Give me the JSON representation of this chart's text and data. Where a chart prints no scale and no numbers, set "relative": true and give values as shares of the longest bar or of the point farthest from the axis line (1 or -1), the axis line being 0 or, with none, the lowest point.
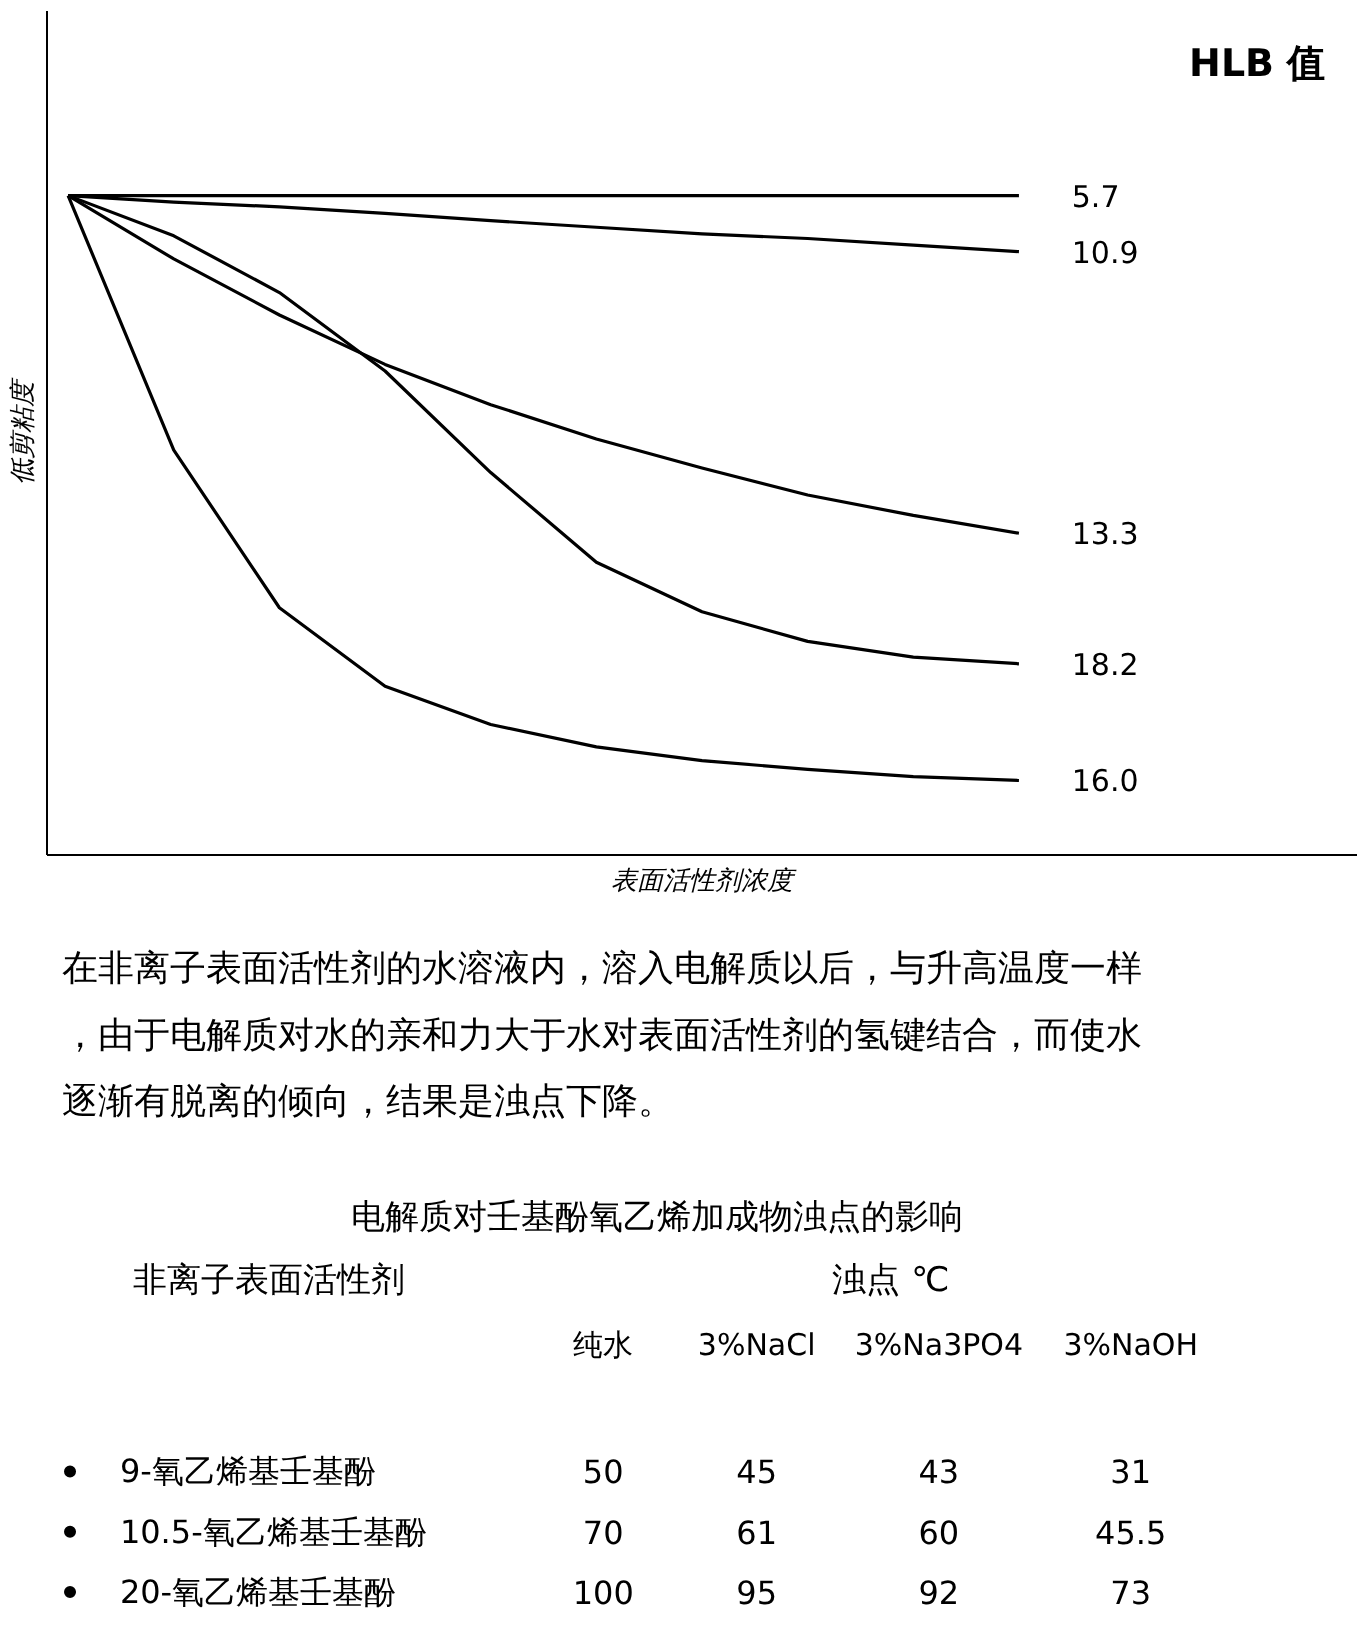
{
  "chart_data": [
    {
      "type": "line",
      "relative": true,
      "ylabel": "低剪粘度",
      "xlabel": "表面活性剂浓度",
      "legend_title": "HLB 值",
      "categories": [
        null,
        null,
        null,
        null,
        null,
        null,
        null,
        null,
        null,
        null
      ],
      "series": [
        {
          "name": "5.7",
          "color": "#000000",
          "values": [
            1,
            1,
            1,
            1,
            1,
            1,
            1,
            1,
            1,
            1
          ]
        },
        {
          "name": "10.9",
          "color": "#000000",
          "values": [
            1,
            0.99,
            0.983,
            0.973,
            0.962,
            0.952,
            0.942,
            0.935,
            0.925,
            0.915
          ]
        },
        {
          "name": "13.3",
          "color": "#000000",
          "values": [
            1,
            0.904,
            0.819,
            0.744,
            0.683,
            0.631,
            0.587,
            0.546,
            0.515,
            0.488
          ]
        },
        {
          "name": "18.2",
          "color": "#000000",
          "values": [
            1,
            0.939,
            0.853,
            0.734,
            0.58,
            0.444,
            0.369,
            0.324,
            0.3,
            0.29
          ]
        },
        {
          "name": "16.0",
          "color": "#000000",
          "values": [
            1,
            0.614,
            0.375,
            0.256,
            0.198,
            0.164,
            0.143,
            0.13,
            0.119,
            0.113
          ]
        }
      ]
    },
    {
      "type": "other",
      "annotations": [
        "在非离子表面活性剂的水溶液内，溶入电解质以后，与升高温度一样，由于电解质对水的亲和力大于水对表面活性剂的氢键结合，而使水逐渐有脱离的倾向，结果是浊点下降。"
      ],
      "title": "电解质对壬基酚氧乙烯加成物浊点的影响",
      "ylabel": "非离子表面活性剂",
      "xlabel": "浊点 ℃",
      "data_labels": true,
      "categories": [
        "纯水",
        "3%NaCl",
        "3%Na3PO4",
        "3%NaOH"
      ],
      "series": [
        {
          "name": "9-氧乙烯基壬基酚",
          "values": [
            50,
            45,
            43,
            31
          ]
        },
        {
          "name": "10.5-氧乙烯基壬基酚",
          "values": [
            70,
            61,
            60,
            45.5
          ]
        },
        {
          "name": "20-氧乙烯基壬基酚",
          "values": [
            100,
            95,
            92,
            73
          ]
        }
      ]
    }
  ]
}
